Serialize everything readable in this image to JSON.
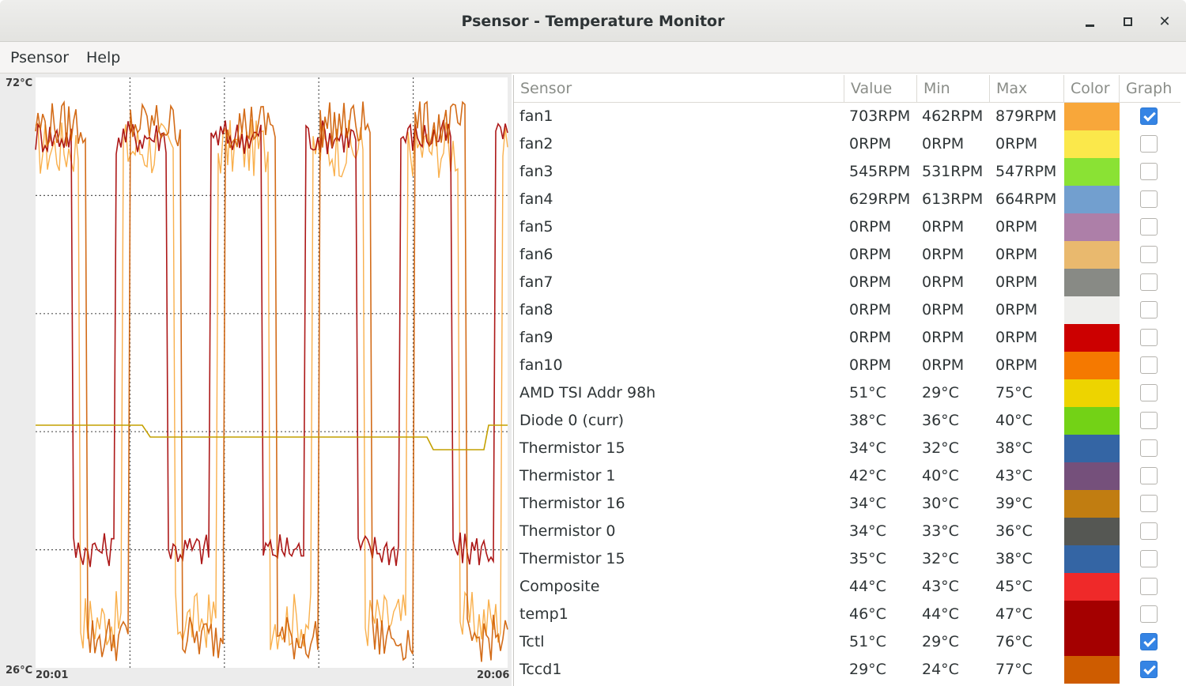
{
  "window": {
    "title": "Psensor - Temperature Monitor",
    "controls": {
      "minimize_icon": "minimize-icon",
      "maximize_icon": "maximize-icon",
      "close_icon": "close-icon",
      "close_glyph": "✕"
    }
  },
  "menu": {
    "items": [
      "Psensor",
      "Help"
    ]
  },
  "graph": {
    "y_max_label": "72°C",
    "y_min_label": "26°C",
    "x_start_label": "20:01",
    "x_end_label": "20:06"
  },
  "table": {
    "headers": {
      "sensor": "Sensor",
      "value": "Value",
      "min": "Min",
      "max": "Max",
      "color": "Color",
      "graph": "Graph"
    },
    "rows": [
      {
        "sensor": "fan1",
        "value": "703RPM",
        "min": "462RPM",
        "max": "879RPM",
        "color": "#f8a73a",
        "graph": true
      },
      {
        "sensor": "fan2",
        "value": "0RPM",
        "min": "0RPM",
        "max": "0RPM",
        "color": "#fbe84b",
        "graph": false
      },
      {
        "sensor": "fan3",
        "value": "545RPM",
        "min": "531RPM",
        "max": "547RPM",
        "color": "#8ae234",
        "graph": false
      },
      {
        "sensor": "fan4",
        "value": "629RPM",
        "min": "613RPM",
        "max": "664RPM",
        "color": "#729fcf",
        "graph": false
      },
      {
        "sensor": "fan5",
        "value": "0RPM",
        "min": "0RPM",
        "max": "0RPM",
        "color": "#ad7fa8",
        "graph": false
      },
      {
        "sensor": "fan6",
        "value": "0RPM",
        "min": "0RPM",
        "max": "0RPM",
        "color": "#e9b96e",
        "graph": false
      },
      {
        "sensor": "fan7",
        "value": "0RPM",
        "min": "0RPM",
        "max": "0RPM",
        "color": "#888a85",
        "graph": false
      },
      {
        "sensor": "fan8",
        "value": "0RPM",
        "min": "0RPM",
        "max": "0RPM",
        "color": "#eeeeec",
        "graph": false
      },
      {
        "sensor": "fan9",
        "value": "0RPM",
        "min": "0RPM",
        "max": "0RPM",
        "color": "#cc0000",
        "graph": false
      },
      {
        "sensor": "fan10",
        "value": "0RPM",
        "min": "0RPM",
        "max": "0RPM",
        "color": "#f57900",
        "graph": false
      },
      {
        "sensor": "AMD TSI Addr 98h",
        "value": "51°C",
        "min": "29°C",
        "max": "75°C",
        "color": "#edd400",
        "graph": false
      },
      {
        "sensor": "Diode 0 (curr)",
        "value": "38°C",
        "min": "36°C",
        "max": "40°C",
        "color": "#73d216",
        "graph": false
      },
      {
        "sensor": "Thermistor 15",
        "value": "34°C",
        "min": "32°C",
        "max": "38°C",
        "color": "#3465a4",
        "graph": false
      },
      {
        "sensor": "Thermistor 1",
        "value": "42°C",
        "min": "40°C",
        "max": "43°C",
        "color": "#75507b",
        "graph": false
      },
      {
        "sensor": "Thermistor 16",
        "value": "34°C",
        "min": "30°C",
        "max": "39°C",
        "color": "#c17d11",
        "graph": false
      },
      {
        "sensor": "Thermistor 0",
        "value": "34°C",
        "min": "33°C",
        "max": "36°C",
        "color": "#555753",
        "graph": false
      },
      {
        "sensor": "Thermistor 15",
        "value": "35°C",
        "min": "32°C",
        "max": "38°C",
        "color": "#3465a4",
        "graph": false
      },
      {
        "sensor": "Composite",
        "value": "44°C",
        "min": "43°C",
        "max": "45°C",
        "color": "#ef2929",
        "graph": false
      },
      {
        "sensor": "temp1",
        "value": "46°C",
        "min": "44°C",
        "max": "47°C",
        "color": "#a40000",
        "graph": false
      },
      {
        "sensor": "Tctl",
        "value": "51°C",
        "min": "29°C",
        "max": "76°C",
        "color": "#a40000",
        "graph": true
      },
      {
        "sensor": "Tccd1",
        "value": "29°C",
        "min": "24°C",
        "max": "77°C",
        "color": "#ce5c00",
        "graph": true
      }
    ]
  }
}
